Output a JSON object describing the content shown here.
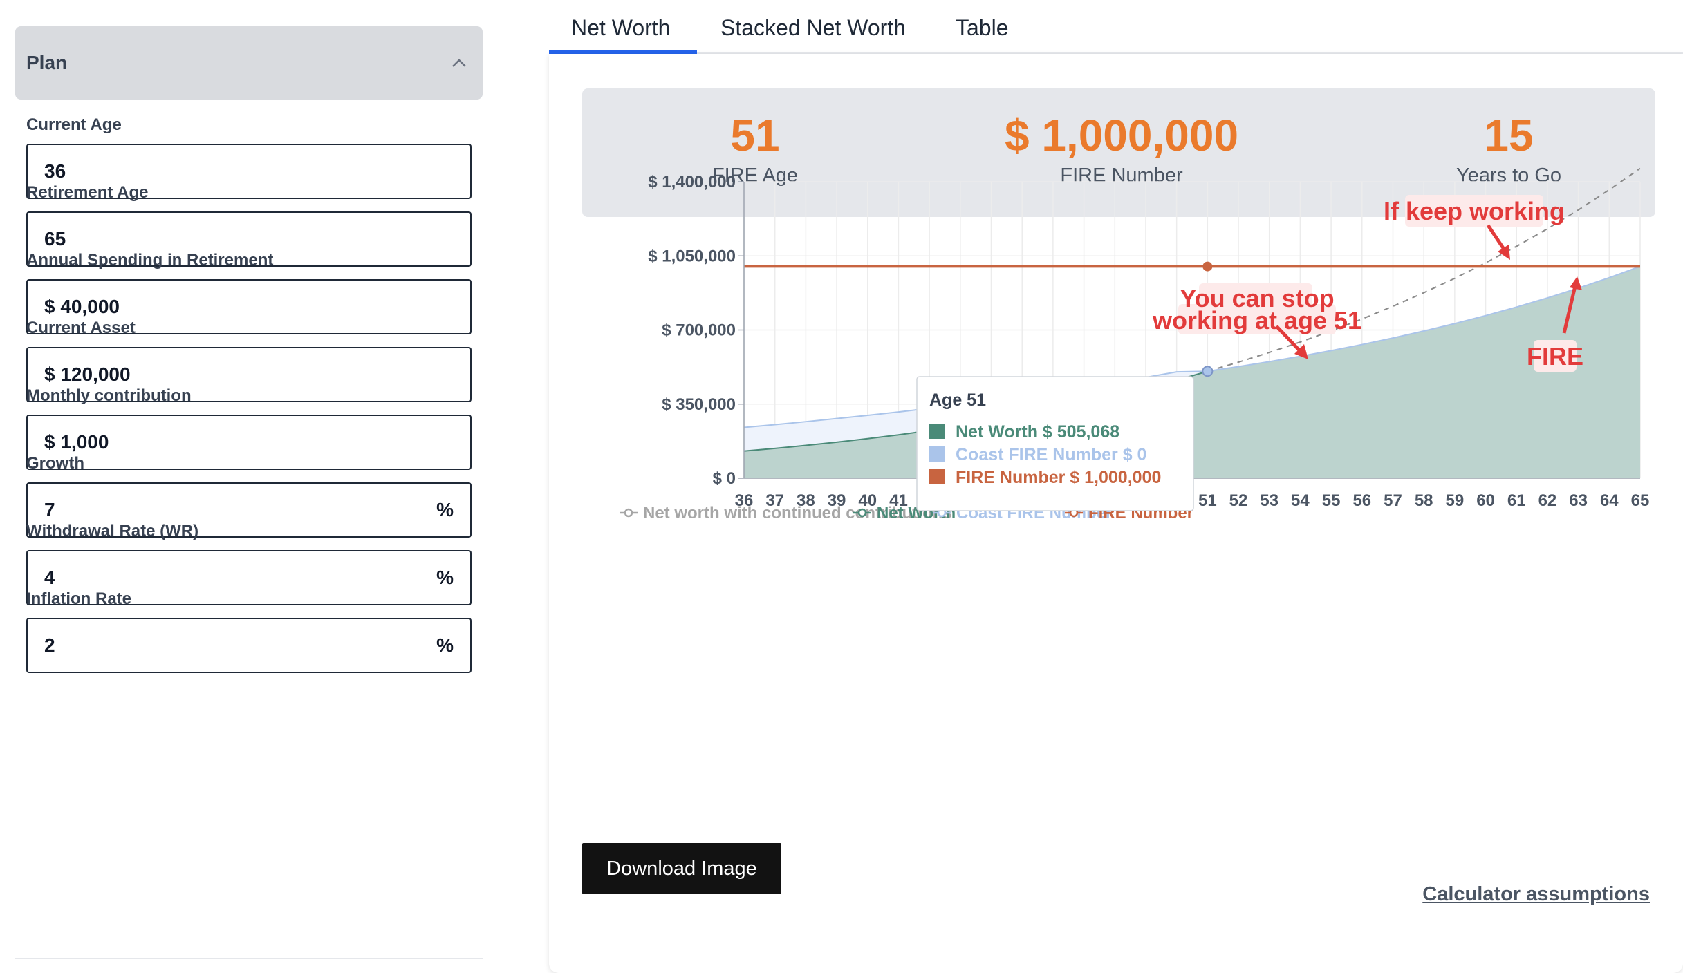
{
  "sidebar": {
    "title": "Plan",
    "fields": [
      {
        "label": "Current Age",
        "value": "36",
        "suffix": ""
      },
      {
        "label": "Retirement Age",
        "value": "65",
        "suffix": ""
      },
      {
        "label": "Annual Spending in Retirement",
        "value": "$ 40,000",
        "suffix": ""
      },
      {
        "label": "Current Asset",
        "value": "$ 120,000",
        "suffix": ""
      },
      {
        "label": "Monthly contribution",
        "value": "$ 1,000",
        "suffix": ""
      },
      {
        "label": "Growth",
        "value": "7",
        "suffix": "%"
      },
      {
        "label": "Withdrawal Rate (WR)",
        "value": "4",
        "suffix": "%"
      },
      {
        "label": "Inflation Rate",
        "value": "2",
        "suffix": "%"
      }
    ]
  },
  "tabs": [
    {
      "label": "Net Worth",
      "active": true
    },
    {
      "label": "Stacked Net Worth",
      "active": false
    },
    {
      "label": "Table",
      "active": false
    }
  ],
  "stats": {
    "fire_age": {
      "value": "51",
      "label": "FIRE Age"
    },
    "fire_number": {
      "value": "$ 1,000,000",
      "label": "FIRE Number"
    },
    "years_to_go": {
      "value": "15",
      "label": "Years to Go"
    }
  },
  "colors": {
    "accent_orange": "#ea7a2c",
    "net_worth": "#4a8a78",
    "net_worth_fill": "#bcd3ce",
    "coast_fire": "#aac4ea",
    "coast_fill": "#eef3fc",
    "fire_number": "#c86440",
    "continued": "#9ca3af",
    "annotation_red": "#e23b3b",
    "tab_active": "#2563eb"
  },
  "chart_data": {
    "type": "area",
    "x": [
      36,
      37,
      38,
      39,
      40,
      41,
      42,
      43,
      44,
      45,
      46,
      47,
      48,
      49,
      50,
      51,
      52,
      53,
      54,
      55,
      56,
      57,
      58,
      59,
      60,
      61,
      62,
      63,
      64,
      65
    ],
    "ylim": [
      0,
      1400000
    ],
    "y_ticks": [
      "$ 0",
      "$ 350,000",
      "$ 700,000",
      "$ 1,050,000",
      "$ 1,400,000"
    ],
    "y_tick_values": [
      0,
      350000,
      700000,
      1050000,
      1400000
    ],
    "grid": true,
    "legend_position": "bottom",
    "series": [
      {
        "name": "Net worth with continued contributions",
        "style": "dashed",
        "values": [
          null,
          null,
          null,
          null,
          null,
          null,
          null,
          null,
          null,
          null,
          null,
          null,
          null,
          null,
          null,
          505068,
          548000,
          594000,
          643000,
          696000,
          752000,
          812000,
          876000,
          944000,
          1017000,
          1095000,
          1178000,
          1267000,
          1362000,
          1463000
        ]
      },
      {
        "name": "Net Worth",
        "style": "area",
        "values": [
          128000,
          150000,
          173000,
          198000,
          224000,
          252000,
          283000,
          315000,
          349000,
          385000,
          424000,
          465000,
          509000,
          556000,
          506000,
          505068,
          540000,
          578000,
          618000,
          660000,
          705000,
          753000,
          804000,
          858000,
          915000,
          976000,
          1040000,
          1108000,
          1180000,
          1000000
        ]
      },
      {
        "name": "Coast FIRE Number",
        "style": "area",
        "values": [
          240000,
          253000,
          267000,
          282000,
          297000,
          313000,
          330000,
          348000,
          367000,
          386000,
          407000,
          429000,
          452000,
          476000,
          502000,
          0,
          0,
          0,
          0,
          0,
          0,
          0,
          0,
          0,
          0,
          0,
          0,
          0,
          0,
          0
        ]
      },
      {
        "name": "FIRE Number",
        "style": "line",
        "values": [
          1000000,
          1000000,
          1000000,
          1000000,
          1000000,
          1000000,
          1000000,
          1000000,
          1000000,
          1000000,
          1000000,
          1000000,
          1000000,
          1000000,
          1000000,
          1000000,
          1000000,
          1000000,
          1000000,
          1000000,
          1000000,
          1000000,
          1000000,
          1000000,
          1000000,
          1000000,
          1000000,
          1000000,
          1000000,
          1000000
        ]
      }
    ],
    "tooltip": {
      "title": "Age  51",
      "rows": [
        {
          "label": "Net Worth",
          "value": "$ 505,068"
        },
        {
          "label": "Coast FIRE Number",
          "value": "$ 0"
        },
        {
          "label": "FIRE Number",
          "value": "$ 1,000,000"
        }
      ]
    },
    "annotations": {
      "keep_working": "If keep working",
      "stop_line1": "You can stop",
      "stop_line2": "working at age 51",
      "fire": "FIRE"
    }
  },
  "actions": {
    "download": "Download Image",
    "assumptions": "Calculator assumptions"
  }
}
